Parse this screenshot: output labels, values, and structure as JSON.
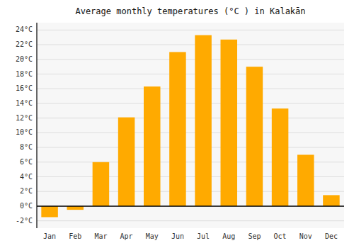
{
  "chart_data": {
    "type": "bar",
    "title": "Average monthly temperatures (°C ) in Kalakān",
    "categories": [
      "Jan",
      "Feb",
      "Mar",
      "Apr",
      "May",
      "Jun",
      "Jul",
      "Aug",
      "Sep",
      "Oct",
      "Nov",
      "Dec"
    ],
    "values": [
      -1.5,
      -0.5,
      6.0,
      12.1,
      16.3,
      21.0,
      23.3,
      22.7,
      19.0,
      13.3,
      7.0,
      1.5
    ],
    "color": "#FFAA00",
    "ylim": [
      -3,
      25
    ],
    "yticks": [
      {
        "value": -2,
        "label": "-2°C"
      },
      {
        "value": 0,
        "label": "0°C"
      },
      {
        "value": 2,
        "label": "2°C"
      },
      {
        "value": 4,
        "label": "4°C"
      },
      {
        "value": 6,
        "label": "6°C"
      },
      {
        "value": 8,
        "label": "8°C"
      },
      {
        "value": 10,
        "label": "10°C"
      },
      {
        "value": 12,
        "label": "12°C"
      },
      {
        "value": 14,
        "label": "14°C"
      },
      {
        "value": 16,
        "label": "16°C"
      },
      {
        "value": 18,
        "label": "18°C"
      },
      {
        "value": 20,
        "label": "20°C"
      },
      {
        "value": 22,
        "label": "22°C"
      },
      {
        "value": 24,
        "label": "24°C"
      }
    ],
    "grid": true
  }
}
